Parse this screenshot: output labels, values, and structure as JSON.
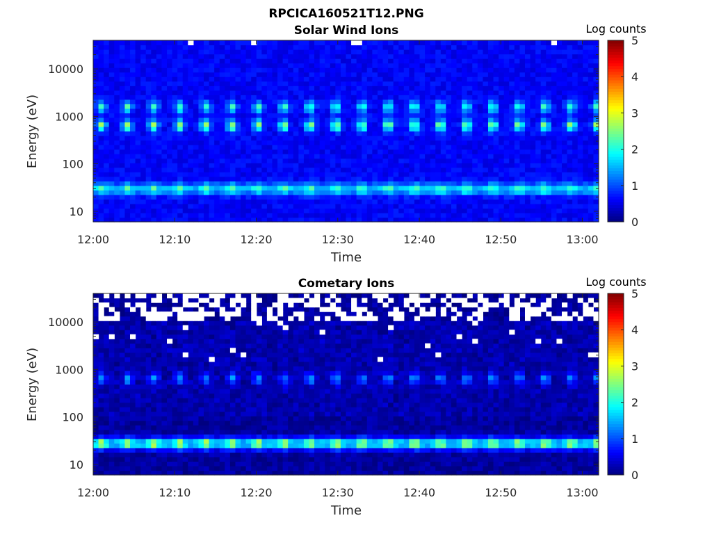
{
  "figure": {
    "title": "RPCICA160521T12.PNG"
  },
  "chart_data": [
    {
      "type": "heatmap",
      "title": "Solar Wind Ions",
      "xlabel": "Time",
      "ylabel": "Energy (eV)",
      "x_ticks": [
        "12:00",
        "12:10",
        "12:20",
        "12:30",
        "12:40",
        "12:50",
        "13:00"
      ],
      "x_range": [
        "12:00",
        "13:02"
      ],
      "y_scale": "log",
      "y_ticks": [
        10,
        100,
        1000,
        10000
      ],
      "y_range": [
        6,
        40000
      ],
      "colorbar": {
        "label": "Log counts",
        "range": [
          0,
          5
        ],
        "ticks": [
          0,
          1,
          2,
          3,
          4,
          5
        ],
        "colormap": "jet"
      },
      "energy_bands": [
        {
          "energy_ev": 30,
          "log_counts": 1.7,
          "note": "bright band around 20-40 eV"
        },
        {
          "energy_ev": 650,
          "log_counts": 2.1,
          "note": "periodic bursts near 600-700 eV"
        },
        {
          "energy_ev": 1600,
          "log_counts": 1.6,
          "note": "weaker periodic bursts near 1.5 keV"
        }
      ],
      "background_log_counts": 0.6,
      "burst_period_minutes": 3.2
    },
    {
      "type": "heatmap",
      "title": "Cometary Ions",
      "xlabel": "Time",
      "ylabel": "Energy (eV)",
      "x_ticks": [
        "12:00",
        "12:10",
        "12:20",
        "12:30",
        "12:40",
        "12:50",
        "13:00"
      ],
      "x_range": [
        "12:00",
        "13:02"
      ],
      "y_scale": "log",
      "y_ticks": [
        10,
        100,
        1000,
        10000
      ],
      "y_range": [
        6,
        40000
      ],
      "colorbar": {
        "label": "Log counts",
        "range": [
          0,
          5
        ],
        "ticks": [
          0,
          1,
          2,
          3,
          4,
          5
        ],
        "colormap": "jet"
      },
      "energy_bands": [
        {
          "energy_ev": 28,
          "log_counts": 2.9,
          "note": "intense band around 20-40 eV"
        },
        {
          "energy_ev": 650,
          "log_counts": 1.2,
          "note": "faint periodic bursts near 600-700 eV"
        }
      ],
      "background_log_counts": 0.15,
      "missing_data_above_ev": 11000,
      "burst_period_minutes": 3.2
    }
  ]
}
